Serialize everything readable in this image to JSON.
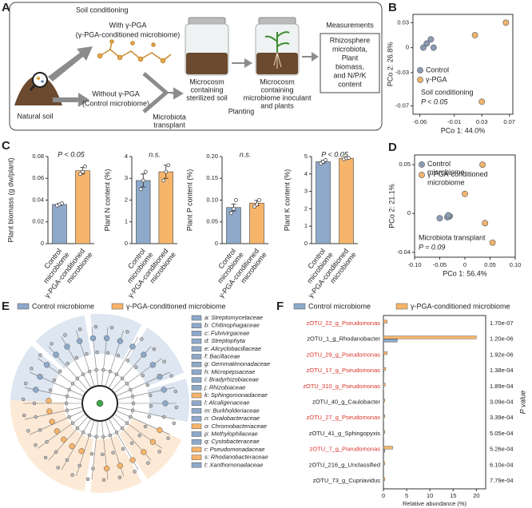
{
  "panel_labels": [
    "A",
    "B",
    "C",
    "D",
    "E",
    "F"
  ],
  "diagram": {
    "soil_conditioning": "Soil conditioning",
    "with": "With γ-PGA",
    "with_sub": "(γ-PGA-conditioned microbiome)",
    "natural_soil": "Natural soil",
    "without": "Without γ-PGA",
    "without_sub": "(Control microbiome)",
    "transplant": [
      "Microbiota",
      "transplant"
    ],
    "sterilized": [
      "Microcosm",
      "containing",
      "sterilized soil"
    ],
    "planting": "Planting",
    "inoculant": [
      "Microcosm",
      "containing",
      "microbiome inoculant",
      "and plants"
    ],
    "measurements": "Measurements",
    "measurements_box": [
      "Rhizosphere",
      "microbiota,",
      "Plant",
      "biomass,",
      "and N/P/K",
      "content"
    ]
  },
  "chart_data": [
    {
      "type": "scatter",
      "xlabel": "PCo 1: 44.0%",
      "ylabel": "PCo 2: 26.8%",
      "xlim": [
        -0.07,
        0.075
      ],
      "xticks": [
        -0.06,
        -0.01,
        0.03,
        0.07
      ],
      "ylim": [
        -0.08,
        0.04
      ],
      "yticks": [
        -0.07,
        -0.03,
        0,
        0.03
      ],
      "series": [
        {
          "name": "Control",
          "color": "#8d9bb5",
          "x": [
            -0.05,
            -0.044,
            -0.055,
            -0.04
          ],
          "values": [
            0.005,
            0.01,
            0.0,
            0.0
          ]
        },
        {
          "name": "γ-PGA",
          "color": "#f2b56e",
          "x": [
            0.065,
            0.02,
            0.03
          ],
          "values": [
            0.03,
            0.015,
            -0.065
          ]
        }
      ],
      "annotations": [
        "Soil conditioning",
        "P < 0.05"
      ]
    },
    {
      "type": "bar",
      "ylabel": "Plant biomass (g dw/plant)",
      "categories": [
        "Control microbiome",
        "γ-PGA-conditioned microbiome"
      ],
      "values": [
        0.036,
        0.067
      ],
      "errors": [
        0.001,
        0.003
      ],
      "colors": [
        "#8ea9c9",
        "#f7b56b"
      ],
      "replicates": [
        [
          0.035,
          0.036,
          0.037
        ],
        [
          0.064,
          0.066,
          0.071
        ]
      ],
      "ylim": [
        0,
        0.08
      ],
      "yticks": [
        0,
        0.02,
        0.04,
        0.06,
        0.08
      ],
      "annotation": "P < 0.05"
    },
    {
      "type": "bar",
      "ylabel": "Plant N content (%)",
      "categories": [
        "Control microbiome",
        "γ-PGA-conditioned microbiome"
      ],
      "values": [
        2.9,
        3.3
      ],
      "errors": [
        0.3,
        0.3
      ],
      "colors": [
        "#8ea9c9",
        "#f7b56b"
      ],
      "replicates": [
        [
          2.5,
          2.9,
          3.3
        ],
        [
          2.9,
          3.3,
          3.6
        ]
      ],
      "ylim": [
        0,
        4
      ],
      "yticks": [
        0,
        1,
        2,
        3,
        4
      ],
      "annotation": "n.s."
    },
    {
      "type": "bar",
      "ylabel": "Plant P content (%)",
      "categories": [
        "Control microbiome",
        "γ-PGA-conditioned microbiome"
      ],
      "values": [
        0.083,
        0.093
      ],
      "errors": [
        0.008,
        0.006
      ],
      "colors": [
        "#8ea9c9",
        "#f7b56b"
      ],
      "replicates": [
        [
          0.07,
          0.08,
          0.1
        ],
        [
          0.085,
          0.09,
          0.1
        ]
      ],
      "ylim": [
        0,
        0.2
      ],
      "yticks": [
        0,
        0.05,
        {
          "value": 0.1,
          "label": "0.10"
        },
        0.15,
        {
          "value": 0.2,
          "label": "0.20"
        }
      ],
      "annotation": "n.s."
    },
    {
      "type": "bar",
      "ylabel": "Plant K content (%)",
      "categories": [
        "Control microbiome",
        "γ-PGA-conditioned microbiome"
      ],
      "values": [
        4.7,
        4.9
      ],
      "errors": [
        0.08,
        0.04
      ],
      "colors": [
        "#8ea9c9",
        "#f7b56b"
      ],
      "replicates": [
        [
          4.6,
          4.7,
          4.8
        ],
        [
          4.85,
          4.9,
          4.92
        ]
      ],
      "ylim": [
        0,
        5
      ],
      "yticks": [
        0,
        1,
        2,
        3,
        4,
        5
      ],
      "annotation": "P < 0.05"
    },
    {
      "type": "scatter",
      "xlabel": "PCo 1: 56.4%",
      "ylabel": "PCo 2: 21.1%",
      "xlim": [
        -0.1,
        0.1
      ],
      "xticks": [
        {
          "value": -0.1,
          "label": "-0.10"
        },
        -0.05,
        0,
        0.05,
        {
          "value": 0.1,
          "label": "0.10"
        }
      ],
      "ylim": [
        -0.045,
        0.06
      ],
      "yticks": [
        -0.04,
        0,
        0.05
      ],
      "series": [
        {
          "name": "Control microbiome",
          "color": "#8d9bb5",
          "x": [
            -0.05,
            -0.03,
            -0.035,
            -0.033
          ],
          "values": [
            -0.005,
            -0.003,
            -0.004,
            -0.002
          ]
        },
        {
          "name": "γ-PGA-conditioned microbiome",
          "color": "#f2b56e",
          "x": [
            0.035,
            0.0,
            0.04,
            0.055
          ],
          "values": [
            0.05,
            0.02,
            -0.01,
            -0.03
          ]
        }
      ],
      "annotations": [
        "Microbiota transplant",
        "P = 0.09"
      ]
    },
    {
      "type": "hbar",
      "xlabel": "Relative abundance (%)",
      "xlim": [
        0,
        22
      ],
      "xticks": [
        0,
        5,
        10,
        15,
        20
      ],
      "categories": [
        "zOTU_22_g_Pseudomonas",
        "zOTU_1_g_Rhodanobacter",
        "zOTU_29_g_Pseudomonas",
        "zOTU_17_g_Pseudomonas",
        "zOTU_310_g_Pseudomonas",
        "zOTU_40_g_Caulobacter",
        "zOTU_27_g_Pseudomonas",
        "zOTU_41_g_Sphingopyxis",
        "zOTU_7_g_Pseudomonas",
        "zOTU_216_g_Unclassified",
        "zOTU_73_g_Cupriavidus"
      ],
      "category_colors": [
        "#d9342b",
        "#222222",
        "#d9342b",
        "#d9342b",
        "#d9342b",
        "#222222",
        "#d9342b",
        "#222222",
        "#d9342b",
        "#222222",
        "#222222"
      ],
      "series": [
        {
          "name": "Control microbiome",
          "color": "#8ea9c9",
          "values": [
            0.1,
            3,
            0.1,
            0.1,
            0.05,
            0.05,
            0.05,
            0.05,
            0.3,
            0.05,
            0.05
          ]
        },
        {
          "name": "γ-PGA-conditioned microbiome",
          "color": "#f7b56b",
          "values": [
            0.8,
            20,
            0.8,
            0.5,
            0.4,
            0.3,
            0.3,
            0.3,
            2,
            0.3,
            0.3
          ]
        }
      ],
      "p_values": [
        "1.70e-07",
        "1.20e-06",
        "1.92e-06",
        "1.38e-04",
        "1.89e-04",
        "3.09e-04",
        "3.39e-04",
        "5.05e-04",
        "5.26e-04",
        "6.10e-04",
        "7.79e-04"
      ],
      "p_label": "P value"
    }
  ],
  "cladogram": {
    "legend": [
      "Control microbiome",
      "γ-PGA-conditioned microbiome"
    ],
    "legend_colors": [
      "#8ea9c9",
      "#f7b56b"
    ],
    "items": [
      {
        "label": "a: Streptomycetaceae",
        "color": "#8ea9c9"
      },
      {
        "label": "b: Chitinophagaceae",
        "color": "#8ea9c9"
      },
      {
        "label": "c: Fulvivirgaceae",
        "color": "#8ea9c9"
      },
      {
        "label": "d: Streptophyta",
        "color": "#8ea9c9"
      },
      {
        "label": "e: Alicyclobacillaceae",
        "color": "#8ea9c9"
      },
      {
        "label": "f: Bacillaceae",
        "color": "#8ea9c9"
      },
      {
        "label": "g: Gemmatimonadaceae",
        "color": "#8ea9c9"
      },
      {
        "label": "h: Micropepsaceae",
        "color": "#8ea9c9"
      },
      {
        "label": "i: Bradyrhizobiaceae",
        "color": "#8ea9c9"
      },
      {
        "label": "j: Rhizobiaceae",
        "color": "#8ea9c9"
      },
      {
        "label": "k: Sphingomonadaceae",
        "color": "#f7b56b"
      },
      {
        "label": "l: Alcaligenaceae",
        "color": "#8ea9c9"
      },
      {
        "label": "m: Burkholderiaceae",
        "color": "#8ea9c9"
      },
      {
        "label": "n: Oxalobacteraceae",
        "color": "#8ea9c9"
      },
      {
        "label": "o: Chromobacteriaceae",
        "color": "#f7b56b"
      },
      {
        "label": "p: Methylophilaceae",
        "color": "#8ea9c9"
      },
      {
        "label": "q: Cystobacteraceae",
        "color": "#8ea9c9"
      },
      {
        "label": "r: Pseudomonadaceae",
        "color": "#f7b56b"
      },
      {
        "label": "s: Rhodanobacteraceae",
        "color": "#f7b56b"
      },
      {
        "label": "t: Xanthomonadaceae",
        "color": "#8ea9c9"
      }
    ]
  }
}
